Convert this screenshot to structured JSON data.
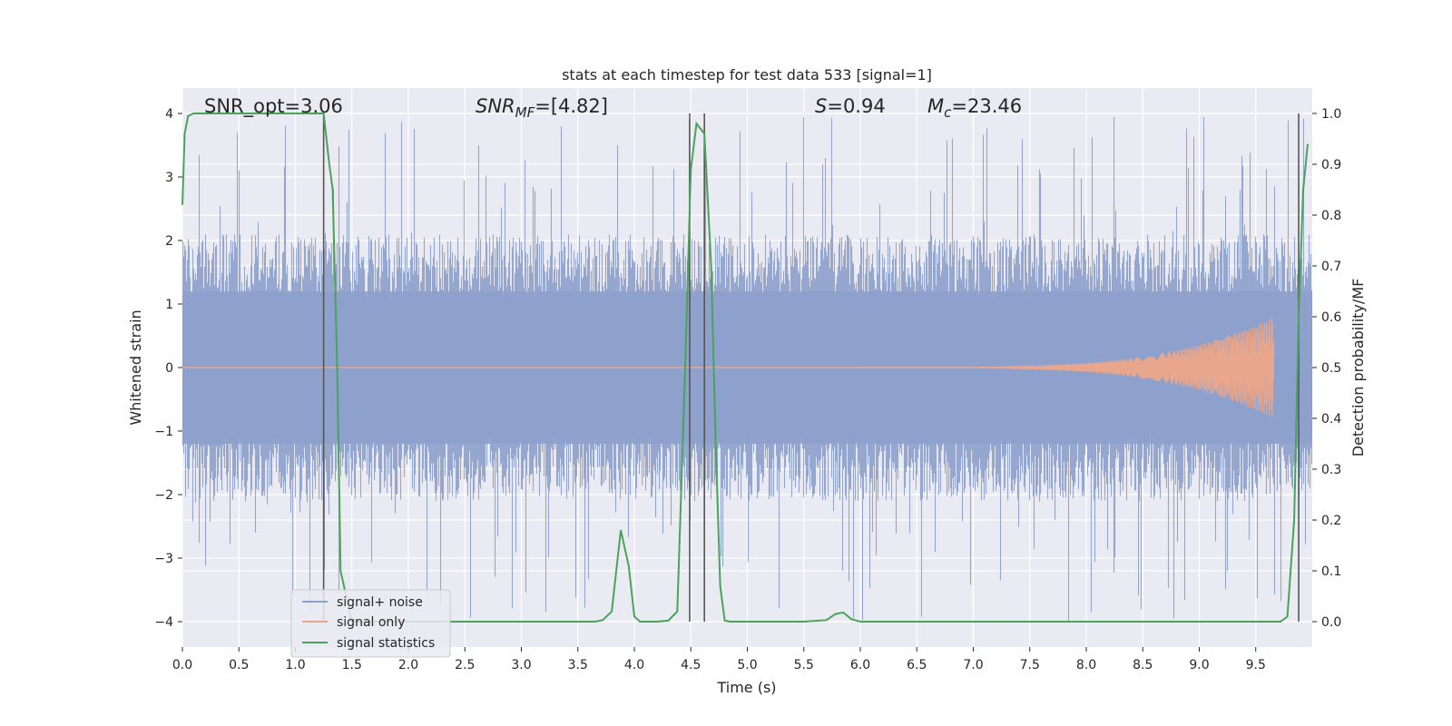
{
  "chart_data": {
    "type": "line",
    "title": "stats at each timestep for test data 533 [signal=1]",
    "xlabel": "Time (s)",
    "ylabel": "Whitened strain",
    "y2label": "Detection probability/MF",
    "xlim": [
      0.0,
      10.0
    ],
    "ylim": [
      -4.4,
      4.4
    ],
    "y2lim": [
      -0.05,
      1.05
    ],
    "grid": true,
    "legend_position": "lower-left",
    "xticks": [
      0.0,
      0.5,
      1.0,
      1.5,
      2.0,
      2.5,
      3.0,
      3.5,
      4.0,
      4.5,
      5.0,
      5.5,
      6.0,
      6.5,
      7.0,
      7.5,
      8.0,
      8.5,
      9.0,
      9.5
    ],
    "xtick_labels": [
      "0.0",
      "0.5",
      "1.0",
      "1.5",
      "2.0",
      "2.5",
      "3.0",
      "3.5",
      "4.0",
      "4.5",
      "5.0",
      "5.5",
      "6.0",
      "6.5",
      "7.0",
      "7.5",
      "8.0",
      "8.5",
      "9.0",
      "9.5"
    ],
    "yticks": [
      4,
      3,
      2,
      1,
      0,
      -1,
      -2,
      -3,
      -4
    ],
    "ytick_labels": [
      "4",
      "3",
      "2",
      "1",
      "0",
      "−1",
      "−2",
      "−3",
      "−4"
    ],
    "y2ticks": [
      1.0,
      0.9,
      0.8,
      0.7,
      0.6,
      0.5,
      0.4,
      0.3,
      0.2,
      0.1,
      0.0
    ],
    "y2tick_labels": [
      "1.0",
      "0.9",
      "0.8",
      "0.7",
      "0.6",
      "0.5",
      "0.4",
      "0.3",
      "0.2",
      "0.1",
      "0.0"
    ],
    "annotations": {
      "snr_opt": "SNR_opt=3.06",
      "snr_mf_prefix": "SNR",
      "snr_mf_sub": "MF",
      "snr_mf_value": "=[4.82]",
      "s_symbol": "S",
      "s_value": "=0.94",
      "mc_symbol": "M",
      "mc_sub": "c",
      "mc_value": "=23.46"
    },
    "vertical_lines_x": [
      1.25,
      4.49,
      4.62,
      9.88
    ],
    "series": [
      {
        "name": "signal+ noise",
        "color": "#8da0cb",
        "kind": "noise",
        "x_range": [
          0.0,
          10.0
        ],
        "envelope_y": [
          -2.0,
          2.0
        ],
        "peak_y": [
          -4.0,
          3.95
        ]
      },
      {
        "name": "signal only",
        "color": "#e8a68c",
        "kind": "chirp",
        "x_range": [
          6.0,
          9.66
        ],
        "peak_amplitude": 0.8
      },
      {
        "name": "signal statistics",
        "color": "#4aa35a",
        "axis": "right",
        "x": [
          0.0,
          0.02,
          0.05,
          0.1,
          0.2,
          0.5,
          1.0,
          1.2,
          1.25,
          1.3,
          1.33,
          1.37,
          1.4,
          1.5,
          2.0,
          2.5,
          3.0,
          3.5,
          3.65,
          3.72,
          3.8,
          3.88,
          3.95,
          4.0,
          4.05,
          4.1,
          4.2,
          4.3,
          4.38,
          4.45,
          4.5,
          4.55,
          4.62,
          4.68,
          4.72,
          4.76,
          4.8,
          4.85,
          5.0,
          5.5,
          5.7,
          5.78,
          5.85,
          5.92,
          6.0,
          6.1,
          6.5,
          7.0,
          8.0,
          9.0,
          9.5,
          9.72,
          9.78,
          9.84,
          9.88,
          9.92,
          9.96
        ],
        "y": [
          0.82,
          0.96,
          0.995,
          1.0,
          1.0,
          1.0,
          1.0,
          1.0,
          1.0,
          0.9,
          0.85,
          0.5,
          0.1,
          0.0,
          0.0,
          0.0,
          0.0,
          0.0,
          0.0,
          0.003,
          0.02,
          0.18,
          0.11,
          0.01,
          0.0,
          0.0,
          0.0,
          0.002,
          0.02,
          0.5,
          0.89,
          0.98,
          0.96,
          0.7,
          0.35,
          0.07,
          0.002,
          0.0,
          0.0,
          0.0,
          0.003,
          0.015,
          0.018,
          0.005,
          0.0,
          0.0,
          0.0,
          0.0,
          0.0,
          0.0,
          0.0,
          0.0,
          0.01,
          0.2,
          0.6,
          0.85,
          0.94
        ]
      }
    ]
  }
}
